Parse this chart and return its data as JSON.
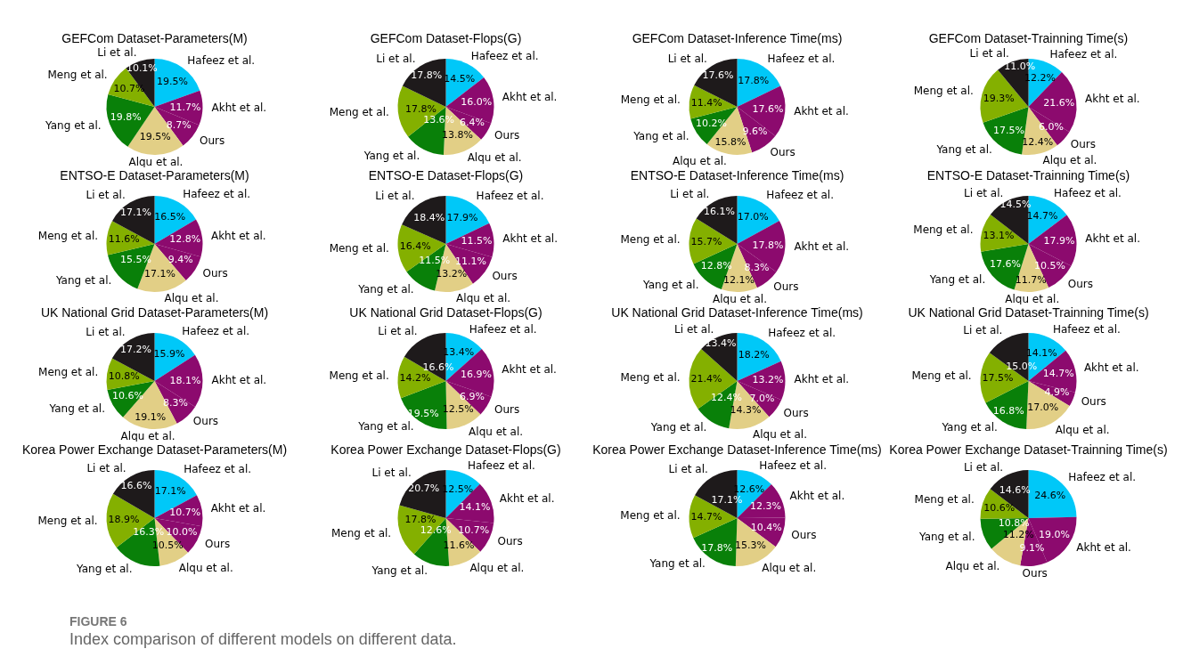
{
  "chart_data": [
    {
      "type": "pie",
      "title": "GEFCom  Dataset-Parameters(M)",
      "categories": [
        "Hafeez et al.",
        "Akht et al.",
        "Ours",
        "Alqu et al.",
        "Yang et al.",
        "Meng et al.",
        "Li et al."
      ],
      "colors": [
        "#00c8f8",
        "#8c0a6e",
        "#8c0a6e",
        "#e2cf86",
        "#098009",
        "#84b000",
        "#1e1a1b"
      ],
      "values": [
        19.5,
        11.7,
        8.7,
        19.5,
        19.8,
        10.7,
        10.1
      ],
      "value_labels": [
        "19.5%",
        "11.7%",
        "8.7%",
        "19.5%",
        "19.8%",
        "10.7%",
        "10.1%"
      ]
    },
    {
      "type": "pie",
      "title": "GEFCom  Dataset-Flops(G)",
      "categories": [
        "Hafeez et al.",
        "Akht et al.",
        "Ours",
        "Alqu et al.",
        "Yang et al.",
        "Meng et al.",
        "Li et al."
      ],
      "colors": [
        "#00c8f8",
        "#8c0a6e",
        "#8c0a6e",
        "#e2cf86",
        "#098009",
        "#84b000",
        "#1e1a1b"
      ],
      "values": [
        14.5,
        16.0,
        6.4,
        13.8,
        13.6,
        17.8,
        17.8
      ],
      "value_labels": [
        "14.5%",
        "16.0%",
        "6.4%",
        "13.8%",
        "13.6%",
        "17.8%",
        "17.8%"
      ]
    },
    {
      "type": "pie",
      "title": "GEFCom  Dataset-Inference Time(ms)",
      "categories": [
        "Hafeez et al.",
        "Akht et al.",
        "Ours",
        "Alqu et al.",
        "Yang et al.",
        "Meng et al.",
        "Li et al."
      ],
      "colors": [
        "#00c8f8",
        "#8c0a6e",
        "#8c0a6e",
        "#e2cf86",
        "#098009",
        "#84b000",
        "#1e1a1b"
      ],
      "values": [
        17.8,
        17.6,
        9.6,
        15.8,
        10.2,
        11.4,
        17.6
      ],
      "value_labels": [
        "17.8%",
        "17.6%",
        "9.6%",
        "15.8%",
        "10.2%",
        "11.4%",
        "17.6%"
      ]
    },
    {
      "type": "pie",
      "title": "GEFCom  Dataset-Trainning Time(s)",
      "categories": [
        "Hafeez et al.",
        "Akht et al.",
        "Ours",
        "Alqu et al.",
        "Yang et al.",
        "Meng et al.",
        "Li et al."
      ],
      "colors": [
        "#00c8f8",
        "#8c0a6e",
        "#8c0a6e",
        "#e2cf86",
        "#098009",
        "#84b000",
        "#1e1a1b"
      ],
      "values": [
        12.2,
        21.6,
        6.0,
        12.4,
        17.5,
        19.3,
        11.0
      ],
      "value_labels": [
        "12.2%",
        "21.6%",
        "6.0%",
        "12.4%",
        "17.5%",
        "19.3%",
        "11.0%"
      ]
    },
    {
      "type": "pie",
      "title": "ENTSO-E Dataset-Parameters(M)",
      "categories": [
        "Hafeez et al.",
        "Akht et al.",
        "Ours",
        "Alqu et al.",
        "Yang et al.",
        "Meng et al.",
        "Li et al."
      ],
      "colors": [
        "#00c8f8",
        "#8c0a6e",
        "#8c0a6e",
        "#e2cf86",
        "#098009",
        "#84b000",
        "#1e1a1b"
      ],
      "values": [
        16.5,
        12.8,
        9.4,
        17.1,
        15.5,
        11.6,
        17.1
      ],
      "value_labels": [
        "16.5%",
        "12.8%",
        "9.4%",
        "17.1%",
        "15.5%",
        "11.6%",
        "17.1%"
      ]
    },
    {
      "type": "pie",
      "title": "ENTSO-E Dataset-Flops(G)",
      "categories": [
        "Hafeez et al.",
        "Akht et al.",
        "Ours",
        "Alqu et al.",
        "Yang et al.",
        "Meng et al.",
        "Li et al."
      ],
      "colors": [
        "#00c8f8",
        "#8c0a6e",
        "#8c0a6e",
        "#e2cf86",
        "#098009",
        "#84b000",
        "#1e1a1b"
      ],
      "values": [
        17.9,
        11.5,
        11.1,
        13.2,
        11.5,
        16.4,
        18.4
      ],
      "value_labels": [
        "17.9%",
        "11.5%",
        "11.1%",
        "13.2%",
        "11.5%",
        "16.4%",
        "18.4%"
      ]
    },
    {
      "type": "pie",
      "title": "ENTSO-E Dataset-Inference Time(ms)",
      "categories": [
        "Hafeez et al.",
        "Akht et al.",
        "Ours",
        "Alqu et al.",
        "Yang et al.",
        "Meng et al.",
        "Li et al."
      ],
      "colors": [
        "#00c8f8",
        "#8c0a6e",
        "#8c0a6e",
        "#e2cf86",
        "#098009",
        "#84b000",
        "#1e1a1b"
      ],
      "values": [
        17.0,
        17.8,
        8.3,
        12.1,
        12.8,
        15.7,
        16.1
      ],
      "value_labels": [
        "17.0%",
        "17.8%",
        "8.3%",
        "12.1%",
        "12.8%",
        "15.7%",
        "16.1%"
      ]
    },
    {
      "type": "pie",
      "title": "ENTSO-E Dataset-Trainning Time(s)",
      "categories": [
        "Hafeez et al.",
        "Akht et al.",
        "Ours",
        "Alqu et al.",
        "Yang et al.",
        "Meng et al.",
        "Li et al."
      ],
      "colors": [
        "#00c8f8",
        "#8c0a6e",
        "#8c0a6e",
        "#e2cf86",
        "#098009",
        "#84b000",
        "#1e1a1b"
      ],
      "values": [
        14.7,
        17.9,
        10.5,
        11.7,
        17.6,
        13.1,
        14.5
      ],
      "value_labels": [
        "14.7%",
        "17.9%",
        "10.5%",
        "11.7%",
        "17.6%",
        "13.1%",
        "14.5%"
      ]
    },
    {
      "type": "pie",
      "title": "UK National Grid Dataset-Parameters(M)",
      "categories": [
        "Hafeez et al.",
        "Akht et al.",
        "Ours",
        "Alqu et al.",
        "Yang et al.",
        "Meng et al.",
        "Li et al."
      ],
      "colors": [
        "#00c8f8",
        "#8c0a6e",
        "#8c0a6e",
        "#e2cf86",
        "#098009",
        "#84b000",
        "#1e1a1b"
      ],
      "values": [
        15.9,
        18.1,
        8.3,
        19.1,
        10.6,
        10.8,
        17.2
      ],
      "value_labels": [
        "15.9%",
        "18.1%",
        "8.3%",
        "19.1%",
        "10.6%",
        "10.8%",
        "17.2%"
      ]
    },
    {
      "type": "pie",
      "title": "UK National Grid Dataset-Flops(G)",
      "categories": [
        "Hafeez et al.",
        "Akht et al.",
        "Ours",
        "Alqu et al.",
        "Yang et al.",
        "Meng et al.",
        "Li et al."
      ],
      "colors": [
        "#00c8f8",
        "#8c0a6e",
        "#8c0a6e",
        "#e2cf86",
        "#098009",
        "#84b000",
        "#1e1a1b"
      ],
      "values": [
        13.4,
        16.9,
        6.9,
        12.5,
        19.5,
        14.2,
        16.6
      ],
      "value_labels": [
        "13.4%",
        "16.9%",
        "6.9%",
        "12.5%",
        "19.5%",
        "14.2%",
        "16.6%"
      ]
    },
    {
      "type": "pie",
      "title": "UK National Grid Dataset-Inference Time(ms)",
      "categories": [
        "Hafeez et al.",
        "Akht et al.",
        "Ours",
        "Alqu et al.",
        "Yang et al.",
        "Meng et al.",
        "Li et al."
      ],
      "colors": [
        "#00c8f8",
        "#8c0a6e",
        "#8c0a6e",
        "#e2cf86",
        "#098009",
        "#84b000",
        "#1e1a1b"
      ],
      "values": [
        18.2,
        13.2,
        7.0,
        14.3,
        12.4,
        21.4,
        13.4
      ],
      "value_labels": [
        "18.2%",
        "13.2%",
        "7.0%",
        "14.3%",
        "12.4%",
        "21.4%",
        "13.4%"
      ]
    },
    {
      "type": "pie",
      "title": "UK National Grid Dataset-Trainning Time(s)",
      "categories": [
        "Hafeez et al.",
        "Akht et al.",
        "Ours",
        "Alqu et al.",
        "Yang et al.",
        "Meng et al.",
        "Li et al."
      ],
      "colors": [
        "#00c8f8",
        "#8c0a6e",
        "#8c0a6e",
        "#e2cf86",
        "#098009",
        "#84b000",
        "#1e1a1b"
      ],
      "values": [
        14.1,
        14.7,
        4.9,
        17.0,
        16.8,
        17.5,
        15.0
      ],
      "value_labels": [
        "14.1%",
        "14.7%",
        "4.9%",
        "17.0%",
        "16.8%",
        "17.5%",
        "15.0%"
      ]
    },
    {
      "type": "pie",
      "title": "Korea Power Exchange Dataset-Parameters(M)",
      "categories": [
        "Hafeez et al.",
        "Akht et al.",
        "Ours",
        "Alqu et al.",
        "Yang et al.",
        "Meng et al.",
        "Li et al."
      ],
      "colors": [
        "#00c8f8",
        "#8c0a6e",
        "#8c0a6e",
        "#e2cf86",
        "#098009",
        "#84b000",
        "#1e1a1b"
      ],
      "values": [
        17.1,
        10.7,
        10.0,
        10.5,
        16.3,
        18.9,
        16.6
      ],
      "value_labels": [
        "17.1%",
        "10.7%",
        "10.0%",
        "10.5%",
        "16.3%",
        "18.9%",
        "16.6%"
      ]
    },
    {
      "type": "pie",
      "title": "Korea Power Exchange Dataset-Flops(G)",
      "categories": [
        "Hafeez et al.",
        "Akht et al.",
        "Ours",
        "Alqu et al.",
        "Yang et al.",
        "Meng et al.",
        "Li et al."
      ],
      "colors": [
        "#00c8f8",
        "#8c0a6e",
        "#8c0a6e",
        "#e2cf86",
        "#098009",
        "#84b000",
        "#1e1a1b"
      ],
      "values": [
        12.5,
        14.1,
        10.7,
        11.6,
        12.6,
        17.8,
        20.7
      ],
      "value_labels": [
        "12.5%",
        "14.1%",
        "10.7%",
        "11.6%",
        "12.6%",
        "17.8%",
        "20.7%"
      ]
    },
    {
      "type": "pie",
      "title": "Korea Power Exchange Dataset-Inference Time(ms)",
      "categories": [
        "Hafeez et al.",
        "Akht et al.",
        "Ours",
        "Alqu et al.",
        "Yang et al.",
        "Meng et al.",
        "Li et al."
      ],
      "colors": [
        "#00c8f8",
        "#8c0a6e",
        "#8c0a6e",
        "#e2cf86",
        "#098009",
        "#84b000",
        "#1e1a1b"
      ],
      "values": [
        12.6,
        12.3,
        10.4,
        15.3,
        17.8,
        14.7,
        17.1
      ],
      "value_labels": [
        "12.6%",
        "12.3%",
        "10.4%",
        "15.3%",
        "17.8%",
        "14.7%",
        "17.1%"
      ]
    },
    {
      "type": "pie",
      "title": "Korea Power Exchange Dataset-Trainning Time(s)",
      "categories": [
        "Hafeez et al.",
        "Akht et al.",
        "Ours",
        "Alqu et al.",
        "Yang et al.",
        "Meng et al.",
        "Li et al."
      ],
      "colors": [
        "#00c8f8",
        "#8c0a6e",
        "#8c0a6e",
        "#e2cf86",
        "#098009",
        "#84b000",
        "#1e1a1b"
      ],
      "values": [
        24.6,
        19.0,
        9.1,
        11.2,
        10.8,
        10.6,
        14.6
      ],
      "value_labels": [
        "24.6%",
        "19.0%",
        "9.1%",
        "11.2%",
        "10.8%",
        "10.6%",
        "14.6%"
      ]
    },
    {
      "type": "other",
      "annotations": [
        "FIGURE 6",
        "Index comparison of different models on different data."
      ]
    }
  ]
}
